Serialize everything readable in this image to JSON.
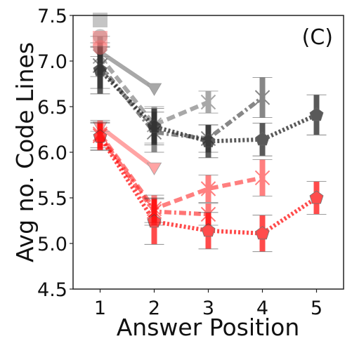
{
  "chart_data": {
    "type": "line",
    "panel_label": "(C)",
    "xlabel": "Answer Position",
    "ylabel": "Avg no. Code Lines",
    "x_ticks": [
      1,
      2,
      3,
      4,
      5
    ],
    "y_ticks": [
      "4.5",
      "5.0",
      "5.5",
      "6.0",
      "6.5",
      "7.0",
      "7.5"
    ],
    "xlim": [
      0.5,
      5.5
    ],
    "ylim": [
      4.5,
      7.5
    ],
    "grid": false,
    "legend": "none",
    "series": [
      {
        "group": "gray",
        "color": "#808080",
        "marker": "circle",
        "style": "solid",
        "opacity": 0.45,
        "x": [
          1
        ],
        "y": [
          7.27
        ],
        "err": [
          0.0
        ]
      },
      {
        "group": "gray",
        "color": "#808080",
        "marker": "square",
        "style": "solid",
        "opacity": 0.45,
        "x": [
          1
        ],
        "y": [
          7.45
        ],
        "err": [
          0.0
        ]
      },
      {
        "group": "gray",
        "color": "#707070",
        "marker": "triangle",
        "style": "solid",
        "opacity": 0.6,
        "x": [
          1,
          2
        ],
        "y": [
          7.1,
          6.7
        ],
        "err": [
          0.05,
          0.0
        ]
      },
      {
        "group": "gray",
        "color": "#707070",
        "marker": "x",
        "style": "dashed",
        "opacity": 0.6,
        "x": [
          1,
          2,
          3
        ],
        "y": [
          7.05,
          6.3,
          6.55
        ],
        "err": [
          0.22,
          0.2,
          0.12
        ]
      },
      {
        "group": "gray",
        "color": "#555555",
        "marker": "x",
        "style": "dashdot",
        "opacity": 0.7,
        "x": [
          1,
          2,
          3,
          4
        ],
        "y": [
          6.95,
          6.22,
          6.15,
          6.6
        ],
        "err": [
          0.25,
          0.22,
          0.15,
          0.22
        ]
      },
      {
        "group": "gray",
        "color": "#222222",
        "marker": "pentagon",
        "style": "dotted",
        "opacity": 0.75,
        "x": [
          1,
          2,
          3,
          4,
          5
        ],
        "y": [
          6.9,
          6.28,
          6.12,
          6.14,
          6.41
        ],
        "err": [
          0.26,
          0.2,
          0.18,
          0.18,
          0.22
        ]
      },
      {
        "group": "red",
        "color": "#ff6b6b",
        "marker": "circle",
        "style": "solid",
        "opacity": 0.45,
        "x": [
          1
        ],
        "y": [
          7.15
        ],
        "err": [
          0.0
        ]
      },
      {
        "group": "red",
        "color": "#ff6b6b",
        "marker": "square",
        "style": "solid",
        "opacity": 0.45,
        "x": [
          1
        ],
        "y": [
          7.25
        ],
        "err": [
          0.0
        ]
      },
      {
        "group": "red",
        "color": "#ff5a5a",
        "marker": "triangle",
        "style": "solid",
        "opacity": 0.55,
        "x": [
          1,
          2
        ],
        "y": [
          6.28,
          5.83
        ],
        "err": [
          0.05,
          0.0
        ]
      },
      {
        "group": "red",
        "color": "#ff3b3b",
        "marker": "x",
        "style": "dashed",
        "opacity": 0.65,
        "x": [
          1,
          2,
          3,
          4
        ],
        "y": [
          6.2,
          5.38,
          5.6,
          5.72
        ],
        "err": [
          0.15,
          0.15,
          0.15,
          0.2
        ]
      },
      {
        "group": "red",
        "color": "#ff2b2b",
        "marker": "x",
        "style": "dashdot",
        "opacity": 0.65,
        "x": [
          1,
          2,
          3
        ],
        "y": [
          6.18,
          5.35,
          5.32
        ],
        "err": [
          0.15,
          0.15,
          0.12
        ]
      },
      {
        "group": "red",
        "color": "#ff0000",
        "marker": "pentagon",
        "style": "dotted",
        "opacity": 0.7,
        "x": [
          1,
          2,
          3,
          4,
          5
        ],
        "y": [
          6.17,
          5.24,
          5.14,
          5.11,
          5.5
        ],
        "err": [
          0.15,
          0.25,
          0.2,
          0.2,
          0.18
        ]
      }
    ]
  }
}
